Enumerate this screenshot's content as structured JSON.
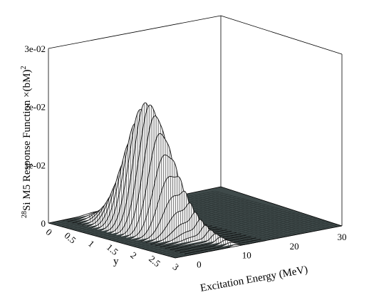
{
  "chart_data": {
    "type": "surface",
    "title": "",
    "zlabel": "Si M5 Response Function ×(bM)",
    "zlabel_superscript_mass": "28",
    "zlabel_superscript_power": "2",
    "xlabel": "Excitation Energy (MeV)",
    "ylabel": "y",
    "x_ticks": [
      "0",
      "10",
      "20",
      "30"
    ],
    "y_ticks": [
      "0",
      "0.5",
      "1",
      "1.5",
      "2",
      "2.5",
      "3"
    ],
    "z_ticks": [
      "0",
      "1e-02",
      "2e-02",
      "3e-02"
    ],
    "xlim": [
      -5,
      30
    ],
    "ylim": [
      0,
      3
    ],
    "zlim": [
      0,
      0.03
    ],
    "surface": {
      "description_free": true,
      "peak_x_mev": 5,
      "peak_y": 1.2,
      "peak_value": 0.0215,
      "x_width_mev": 3.2,
      "y_spread": 0.6,
      "secondary_ridge_x_mev": 7.5,
      "secondary_ridge_value": 0.0035
    }
  }
}
